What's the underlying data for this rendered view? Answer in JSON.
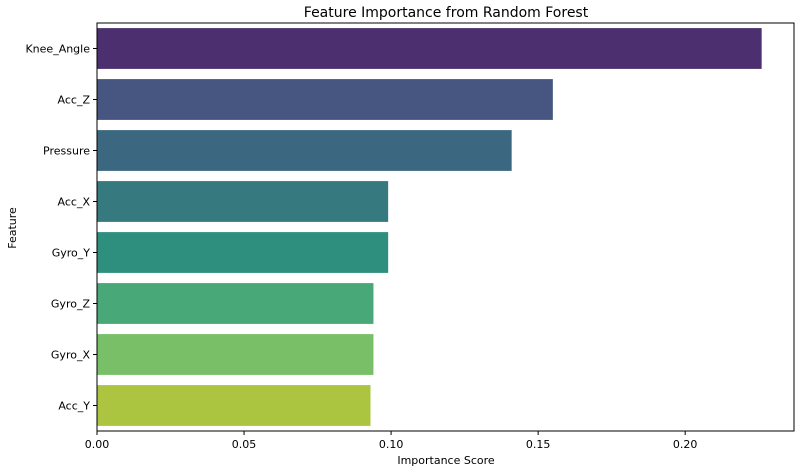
{
  "chart_data": {
    "type": "bar",
    "orientation": "horizontal",
    "title": "Feature Importance from Random Forest",
    "xlabel": "Importance Score",
    "ylabel": "Feature",
    "xlim": [
      0,
      0.237
    ],
    "xticks": [
      "0.00",
      "0.05",
      "0.10",
      "0.15",
      "0.20"
    ],
    "grid": false,
    "categories": [
      "Knee_Angle",
      "Acc_Z",
      "Pressure",
      "Acc_X",
      "Gyro_Y",
      "Gyro_Z",
      "Gyro_X",
      "Acc_Y"
    ],
    "values": [
      0.226,
      0.155,
      0.141,
      0.099,
      0.099,
      0.094,
      0.094,
      0.093
    ],
    "colors": [
      "#4b2f6e",
      "#465680",
      "#3b6880",
      "#367a80",
      "#2e8f7e",
      "#48a877",
      "#78bf68",
      "#abc541"
    ]
  }
}
